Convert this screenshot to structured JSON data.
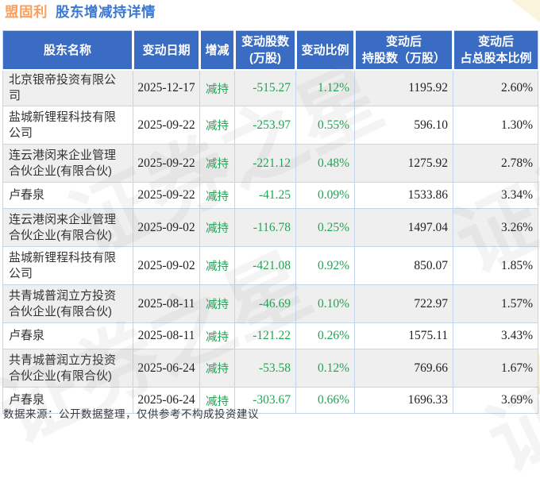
{
  "title": {
    "stock_name": "盟固利",
    "page_title": "股东增减持详情"
  },
  "watermark": {
    "text": "证券之星",
    "text_short": "证券"
  },
  "colors": {
    "accent_orange": "#F9A05F",
    "accent_blue": "#3A78D2",
    "header_bg": "#3A6CC3",
    "decrease_green": "#21A453",
    "row_alt_bg": "#EFEFEF",
    "grid_border": "#C3D4EB"
  },
  "table": {
    "headers": [
      {
        "label": "股东名称"
      },
      {
        "label": "变动日期"
      },
      {
        "label": "增减"
      },
      {
        "label": "变动股数\n(万股)"
      },
      {
        "label": "变动比例"
      },
      {
        "label": "变动后\n持股数（万股）"
      },
      {
        "label": "变动后\n占总股本比例"
      }
    ],
    "rows": [
      {
        "name": "北京银帝投资有限公司",
        "date": "2025-12-17",
        "action": "减持",
        "change_shares": "-515.27",
        "change_ratio": "1.12%",
        "after_shares": "1195.92",
        "after_ratio": "2.60%"
      },
      {
        "name": "盐城新锂程科技有限公司",
        "date": "2025-09-22",
        "action": "减持",
        "change_shares": "-253.97",
        "change_ratio": "0.55%",
        "after_shares": "596.10",
        "after_ratio": "1.30%"
      },
      {
        "name": "连云港闵来企业管理合伙企业(有限合伙)",
        "date": "2025-09-22",
        "action": "减持",
        "change_shares": "-221.12",
        "change_ratio": "0.48%",
        "after_shares": "1275.92",
        "after_ratio": "2.78%"
      },
      {
        "name": "卢春泉",
        "date": "2025-09-22",
        "action": "减持",
        "change_shares": "-41.25",
        "change_ratio": "0.09%",
        "after_shares": "1533.86",
        "after_ratio": "3.34%"
      },
      {
        "name": "连云港闵来企业管理合伙企业(有限合伙)",
        "date": "2025-09-02",
        "action": "减持",
        "change_shares": "-116.78",
        "change_ratio": "0.25%",
        "after_shares": "1497.04",
        "after_ratio": "3.26%"
      },
      {
        "name": "盐城新锂程科技有限公司",
        "date": "2025-09-02",
        "action": "减持",
        "change_shares": "-421.08",
        "change_ratio": "0.92%",
        "after_shares": "850.07",
        "after_ratio": "1.85%"
      },
      {
        "name": "共青城普润立方投资合伙企业(有限合伙)",
        "date": "2025-08-11",
        "action": "减持",
        "change_shares": "-46.69",
        "change_ratio": "0.10%",
        "after_shares": "722.97",
        "after_ratio": "1.57%"
      },
      {
        "name": "卢春泉",
        "date": "2025-08-11",
        "action": "减持",
        "change_shares": "-121.22",
        "change_ratio": "0.26%",
        "after_shares": "1575.11",
        "after_ratio": "3.43%"
      },
      {
        "name": "共青城普润立方投资合伙企业(有限合伙)",
        "date": "2025-06-24",
        "action": "减持",
        "change_shares": "-53.58",
        "change_ratio": "0.12%",
        "after_shares": "769.66",
        "after_ratio": "1.67%"
      },
      {
        "name": "卢春泉",
        "date": "2025-06-24",
        "action": "减持",
        "change_shares": "-303.67",
        "change_ratio": "0.66%",
        "after_shares": "1696.33",
        "after_ratio": "3.69%"
      }
    ]
  },
  "footer": {
    "source_note": "数据来源：公开数据整理，仅供参考不构成投资建议"
  },
  "chart_data": {
    "type": "table",
    "title": "盟固利 股东增减持详情",
    "columns": [
      "股东名称",
      "变动日期",
      "增减",
      "变动股数(万股)",
      "变动比例",
      "变动后持股数（万股）",
      "变动后占总股本比例"
    ],
    "rows": [
      [
        "北京银帝投资有限公司",
        "2025-12-17",
        "减持",
        -515.27,
        "1.12%",
        1195.92,
        "2.60%"
      ],
      [
        "盐城新锂程科技有限公司",
        "2025-09-22",
        "减持",
        -253.97,
        "0.55%",
        596.1,
        "1.30%"
      ],
      [
        "连云港闵来企业管理合伙企业(有限合伙)",
        "2025-09-22",
        "减持",
        -221.12,
        "0.48%",
        1275.92,
        "2.78%"
      ],
      [
        "卢春泉",
        "2025-09-22",
        "减持",
        -41.25,
        "0.09%",
        1533.86,
        "3.34%"
      ],
      [
        "连云港闵来企业管理合伙企业(有限合伙)",
        "2025-09-02",
        "减持",
        -116.78,
        "0.25%",
        1497.04,
        "3.26%"
      ],
      [
        "盐城新锂程科技有限公司",
        "2025-09-02",
        "减持",
        -421.08,
        "0.92%",
        850.07,
        "1.85%"
      ],
      [
        "共青城普润立方投资合伙企业(有限合伙)",
        "2025-08-11",
        "减持",
        -46.69,
        "0.10%",
        722.97,
        "1.57%"
      ],
      [
        "卢春泉",
        "2025-08-11",
        "减持",
        -121.22,
        "0.26%",
        1575.11,
        "3.43%"
      ],
      [
        "共青城普润立方投资合伙企业(有限合伙)",
        "2025-06-24",
        "减持",
        -53.58,
        "0.12%",
        769.66,
        "1.67%"
      ],
      [
        "卢春泉",
        "2025-06-24",
        "减持",
        -303.67,
        "0.66%",
        1696.33,
        "3.69%"
      ]
    ]
  }
}
